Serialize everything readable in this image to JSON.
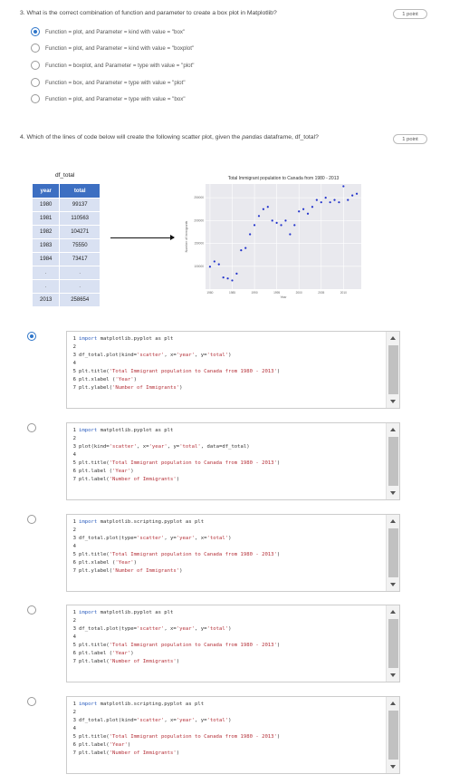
{
  "q3": {
    "text": "3.   What is the correct combination of function and parameter to create a box plot in Matplotlib?",
    "points": "1 point",
    "selected_index": 0,
    "options": [
      "Function = plot, and Parameter = kind with value = \"box\"",
      "Function = plot, and Parameter = kind with value = \"boxplot\"",
      "Function = boxplot, and Parameter = type with value = \"plot\"",
      "Function = box, and Parameter = type with value = \"plot\"",
      "Function = plot, and Parameter = type with value = \"box\""
    ]
  },
  "q4": {
    "text_before": "4.   Which of the lines of code below will create the following scatter plot, given the ",
    "text_italic": "pandas",
    "text_after": " dataframe, df_total?",
    "points": "1 point",
    "selected_index": 0
  },
  "df_table": {
    "title": "df_total",
    "headers": [
      "year",
      "total"
    ],
    "rows": [
      [
        "1980",
        "99137"
      ],
      [
        "1981",
        "110563"
      ],
      [
        "1982",
        "104271"
      ],
      [
        "1983",
        "75550"
      ],
      [
        "1984",
        "73417"
      ],
      [
        ".",
        "."
      ],
      [
        ".",
        "."
      ],
      [
        "2013",
        "258654"
      ]
    ]
  },
  "chart_data": {
    "type": "scatter",
    "title": "Total Immigrant population to Canada from 1980 - 2013",
    "xlabel": "Year",
    "ylabel": "Number of Immigrants",
    "xlim": [
      1979,
      2014
    ],
    "ylim": [
      50000,
      280000
    ],
    "xticks": [
      "1980",
      "1985",
      "1990",
      "1995",
      "2000",
      "2005",
      "2010"
    ],
    "yticks": [
      "100000",
      "150000",
      "200000",
      "250000"
    ],
    "grid": true,
    "point_color": "#2233cc",
    "x": [
      1980,
      1981,
      1982,
      1983,
      1984,
      1985,
      1986,
      1987,
      1988,
      1989,
      1990,
      1991,
      1992,
      1993,
      1994,
      1995,
      1996,
      1997,
      1998,
      1999,
      2000,
      2001,
      2002,
      2003,
      2004,
      2005,
      2006,
      2007,
      2008,
      2009,
      2010,
      2011,
      2012,
      2013
    ],
    "y": [
      99137,
      110563,
      104271,
      75550,
      73417,
      69000,
      84000,
      135000,
      140000,
      170000,
      190000,
      210000,
      225000,
      230000,
      200000,
      195000,
      190000,
      200000,
      170000,
      190000,
      220000,
      225000,
      215000,
      230000,
      245000,
      240000,
      250000,
      240000,
      245000,
      240000,
      275000,
      245000,
      255000,
      258654
    ]
  },
  "code_options": [
    {
      "lines": [
        {
          "n": "1",
          "segments": [
            {
              "t": "import",
              "c": "#2e5fbf"
            },
            {
              "t": " matplotlib.pyplot as plt",
              "c": "#333"
            }
          ]
        },
        {
          "n": "2",
          "segments": []
        },
        {
          "n": "3",
          "segments": [
            {
              "t": "df_total.plot(kind=",
              "c": "#333"
            },
            {
              "t": "'scatter'",
              "c": "#b5323a"
            },
            {
              "t": ", x=",
              "c": "#333"
            },
            {
              "t": "'year'",
              "c": "#b5323a"
            },
            {
              "t": ", y=",
              "c": "#333"
            },
            {
              "t": "'total'",
              "c": "#b5323a"
            },
            {
              "t": ")",
              "c": "#333"
            }
          ]
        },
        {
          "n": "4",
          "segments": []
        },
        {
          "n": "5",
          "segments": [
            {
              "t": "plt.title(",
              "c": "#333"
            },
            {
              "t": "'Total Immigrant population to Canada from 1980 - 2013'",
              "c": "#b5323a"
            },
            {
              "t": ")",
              "c": "#333"
            }
          ]
        },
        {
          "n": "6",
          "segments": [
            {
              "t": "plt.xlabel (",
              "c": "#333"
            },
            {
              "t": "'Year'",
              "c": "#b5323a"
            },
            {
              "t": ")",
              "c": "#333"
            }
          ]
        },
        {
          "n": "7",
          "segments": [
            {
              "t": "plt.ylabel(",
              "c": "#333"
            },
            {
              "t": "'Number of Immigrants'",
              "c": "#b5323a"
            },
            {
              "t": ")",
              "c": "#333"
            }
          ]
        }
      ]
    },
    {
      "lines": [
        {
          "n": "1",
          "segments": [
            {
              "t": "import",
              "c": "#2e5fbf"
            },
            {
              "t": " matplotlib.pyplot as plt",
              "c": "#333"
            }
          ]
        },
        {
          "n": "2",
          "segments": []
        },
        {
          "n": "3",
          "segments": [
            {
              "t": "plot(kind=",
              "c": "#333"
            },
            {
              "t": "'scatter'",
              "c": "#b5323a"
            },
            {
              "t": ", x=",
              "c": "#333"
            },
            {
              "t": "'year'",
              "c": "#b5323a"
            },
            {
              "t": ", y=",
              "c": "#333"
            },
            {
              "t": "'total'",
              "c": "#b5323a"
            },
            {
              "t": ", data=df_total)",
              "c": "#333"
            }
          ]
        },
        {
          "n": "4",
          "segments": []
        },
        {
          "n": "5",
          "segments": [
            {
              "t": "plt.title(",
              "c": "#333"
            },
            {
              "t": "'Total Immigrant population to Canada from 1980 - 2013'",
              "c": "#b5323a"
            },
            {
              "t": ")",
              "c": "#333"
            }
          ]
        },
        {
          "n": "6",
          "segments": [
            {
              "t": "plt.label (",
              "c": "#333"
            },
            {
              "t": "'Year'",
              "c": "#b5323a"
            },
            {
              "t": ")",
              "c": "#333"
            }
          ]
        },
        {
          "n": "7",
          "segments": [
            {
              "t": "plt.label(",
              "c": "#333"
            },
            {
              "t": "'Number of Immigrants'",
              "c": "#b5323a"
            },
            {
              "t": ")",
              "c": "#333"
            }
          ]
        }
      ]
    },
    {
      "lines": [
        {
          "n": "1",
          "segments": [
            {
              "t": "import",
              "c": "#2e5fbf"
            },
            {
              "t": " matplotlib.scripting.pyplot as plt",
              "c": "#333"
            }
          ]
        },
        {
          "n": "2",
          "segments": []
        },
        {
          "n": "3",
          "segments": [
            {
              "t": "df_total.plot(type=",
              "c": "#333"
            },
            {
              "t": "'scatter'",
              "c": "#b5323a"
            },
            {
              "t": ", y=",
              "c": "#333"
            },
            {
              "t": "'year'",
              "c": "#b5323a"
            },
            {
              "t": ", x=",
              "c": "#333"
            },
            {
              "t": "'total'",
              "c": "#b5323a"
            },
            {
              "t": ")",
              "c": "#333"
            }
          ]
        },
        {
          "n": "4",
          "segments": []
        },
        {
          "n": "5",
          "segments": [
            {
              "t": "plt.title(",
              "c": "#333"
            },
            {
              "t": "'Total Immigrant population to Canada from 1980 - 2013'",
              "c": "#b5323a"
            },
            {
              "t": ")",
              "c": "#333"
            }
          ]
        },
        {
          "n": "6",
          "segments": [
            {
              "t": "plt.xlabel (",
              "c": "#333"
            },
            {
              "t": "'Year'",
              "c": "#b5323a"
            },
            {
              "t": ")",
              "c": "#333"
            }
          ]
        },
        {
          "n": "7",
          "segments": [
            {
              "t": "plt.ylabel(",
              "c": "#333"
            },
            {
              "t": "'Number of Immigrants'",
              "c": "#b5323a"
            },
            {
              "t": ")",
              "c": "#333"
            }
          ]
        }
      ]
    },
    {
      "lines": [
        {
          "n": "1",
          "segments": [
            {
              "t": "import",
              "c": "#2e5fbf"
            },
            {
              "t": " matplotlib.pyplot as plt",
              "c": "#333"
            }
          ]
        },
        {
          "n": "2",
          "segments": []
        },
        {
          "n": "3",
          "segments": [
            {
              "t": "df_total.plot(type=",
              "c": "#333"
            },
            {
              "t": "'scatter'",
              "c": "#b5323a"
            },
            {
              "t": ", x=",
              "c": "#333"
            },
            {
              "t": "'year'",
              "c": "#b5323a"
            },
            {
              "t": ", y=",
              "c": "#333"
            },
            {
              "t": "'total'",
              "c": "#b5323a"
            },
            {
              "t": ")",
              "c": "#333"
            }
          ]
        },
        {
          "n": "4",
          "segments": []
        },
        {
          "n": "5",
          "segments": [
            {
              "t": "plt.title(",
              "c": "#333"
            },
            {
              "t": "'Total Immigrant population to Canada from 1980 - 2013'",
              "c": "#b5323a"
            },
            {
              "t": ")",
              "c": "#333"
            }
          ]
        },
        {
          "n": "6",
          "segments": [
            {
              "t": "plt.label (",
              "c": "#333"
            },
            {
              "t": "'Year'",
              "c": "#b5323a"
            },
            {
              "t": ")",
              "c": "#333"
            }
          ]
        },
        {
          "n": "7",
          "segments": [
            {
              "t": "plt.label(",
              "c": "#333"
            },
            {
              "t": "'Number of Immigrants'",
              "c": "#b5323a"
            },
            {
              "t": ")",
              "c": "#333"
            }
          ]
        }
      ]
    },
    {
      "lines": [
        {
          "n": "1",
          "segments": [
            {
              "t": "import",
              "c": "#2e5fbf"
            },
            {
              "t": " matplotlib.scripting.pyplot as plt",
              "c": "#333"
            }
          ]
        },
        {
          "n": "2",
          "segments": []
        },
        {
          "n": "3",
          "segments": [
            {
              "t": "df_total.plot(kind=",
              "c": "#333"
            },
            {
              "t": "'scatter'",
              "c": "#b5323a"
            },
            {
              "t": ", x=",
              "c": "#333"
            },
            {
              "t": "'year'",
              "c": "#b5323a"
            },
            {
              "t": ", y=",
              "c": "#333"
            },
            {
              "t": "'total'",
              "c": "#b5323a"
            },
            {
              "t": ")",
              "c": "#333"
            }
          ]
        },
        {
          "n": "4",
          "segments": []
        },
        {
          "n": "5",
          "segments": [
            {
              "t": "plt.title(",
              "c": "#333"
            },
            {
              "t": "'Total Immigrant population to Canada from 1980 - 2013'",
              "c": "#b5323a"
            },
            {
              "t": ")",
              "c": "#333"
            }
          ]
        },
        {
          "n": "6",
          "segments": [
            {
              "t": "plt.label(",
              "c": "#333"
            },
            {
              "t": "'Year'",
              "c": "#b5323a"
            },
            {
              "t": ")",
              "c": "#333"
            }
          ]
        },
        {
          "n": "7",
          "segments": [
            {
              "t": "plt.label(",
              "c": "#333"
            },
            {
              "t": "'Number of Immigrants'",
              "c": "#b5323a"
            },
            {
              "t": ")",
              "c": "#333"
            }
          ]
        }
      ]
    }
  ]
}
